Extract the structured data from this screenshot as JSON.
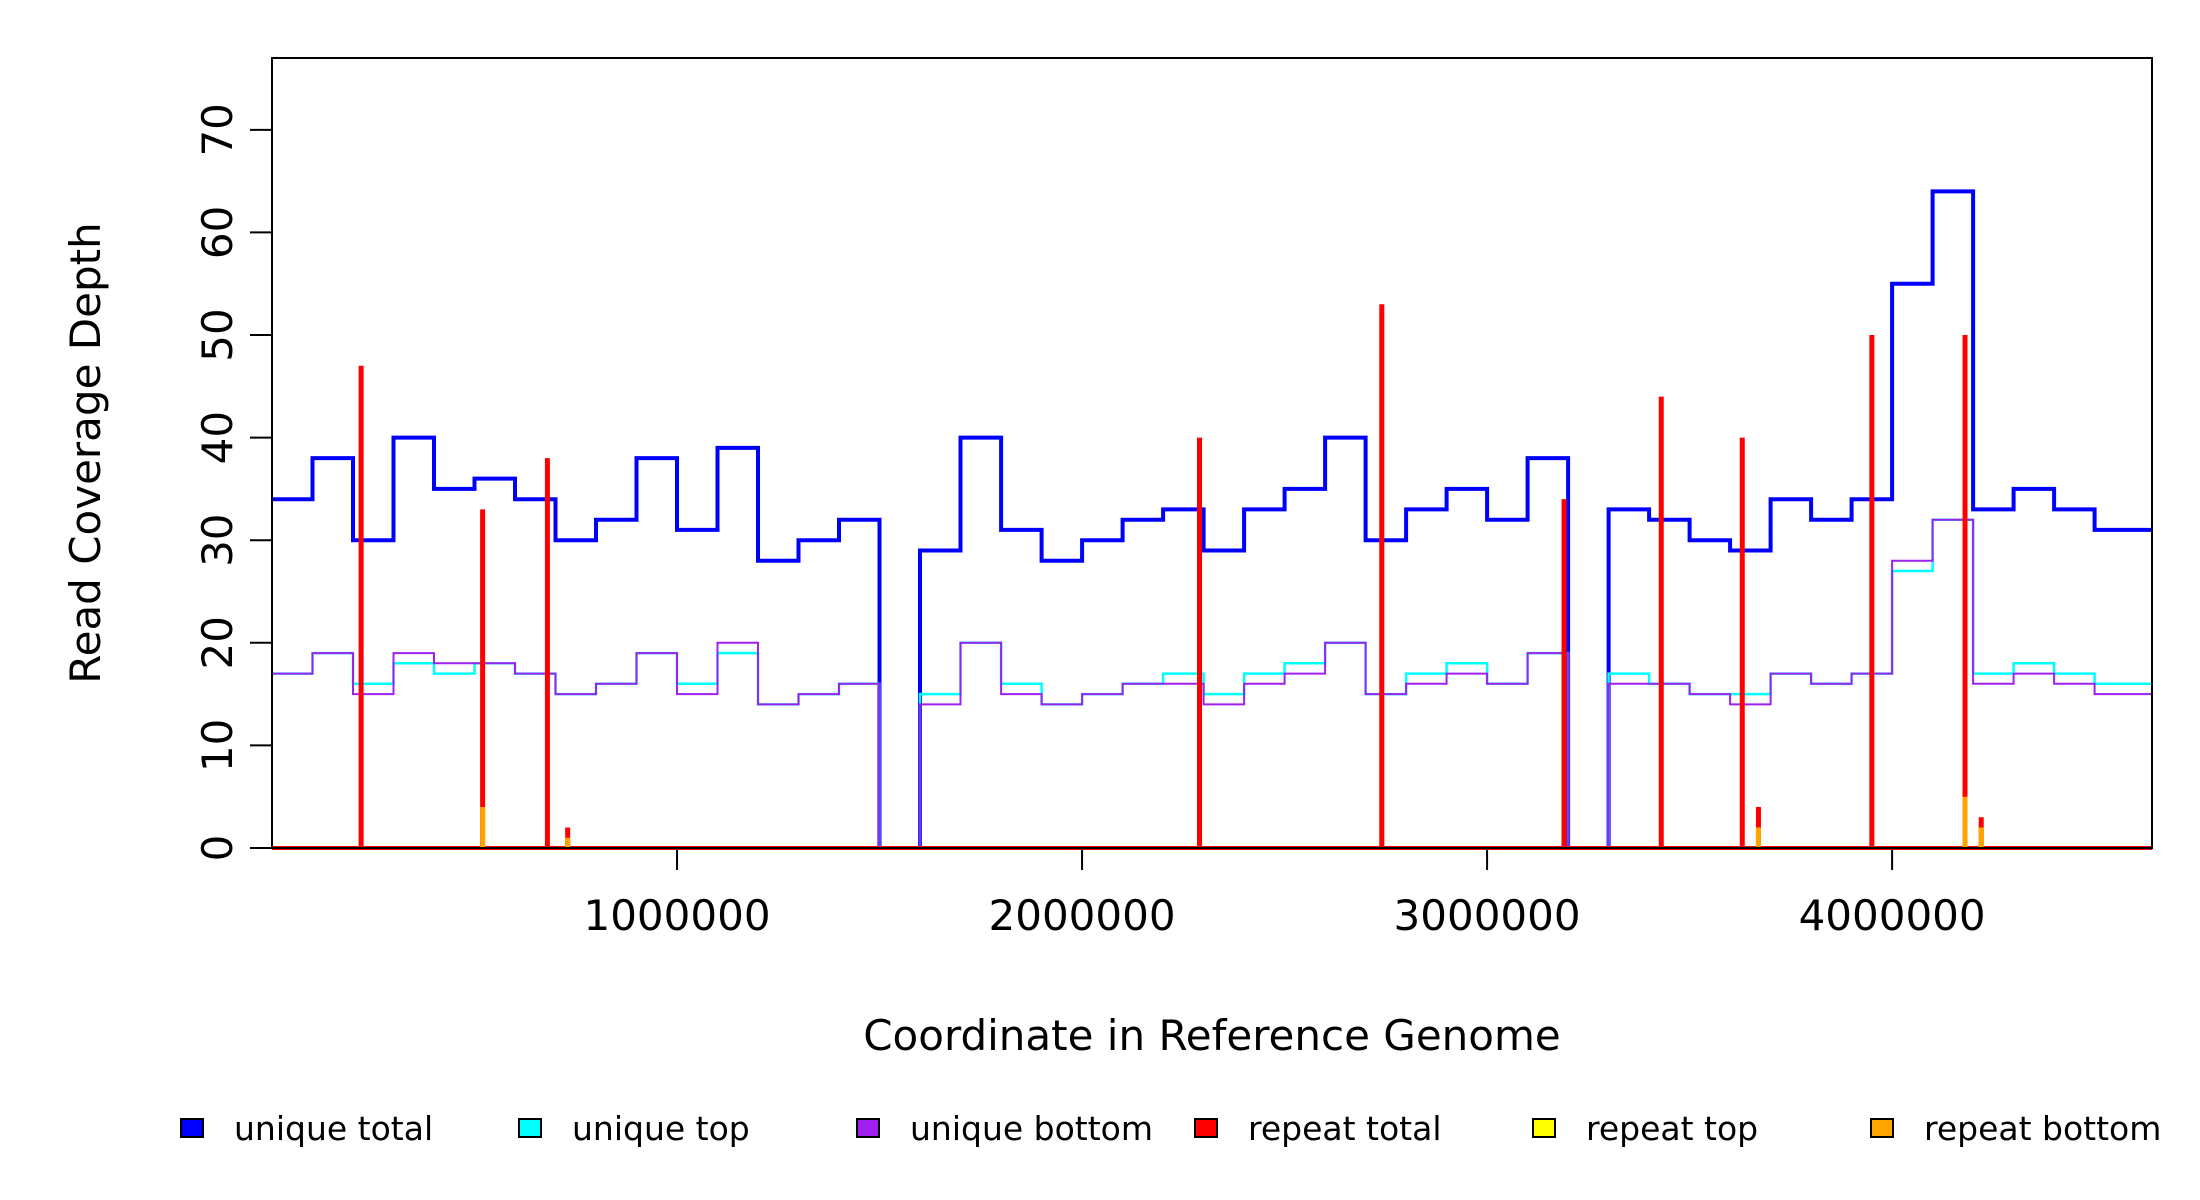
{
  "chart_data": {
    "type": "line",
    "xlabel": "Coordinate in Reference Genome",
    "ylabel": "Read Coverage Depth",
    "xlim": [
      0,
      4641652
    ],
    "ylim": [
      0,
      77
    ],
    "x_ticks": [
      1000000,
      2000000,
      3000000,
      4000000
    ],
    "x_tick_labels": [
      "1000000",
      "2000000",
      "3000000",
      "4000000"
    ],
    "y_ticks": [
      0,
      10,
      20,
      30,
      40,
      50,
      60,
      70
    ],
    "y_tick_labels": [
      "0",
      "10",
      "20",
      "30",
      "40",
      "50",
      "60",
      "70"
    ],
    "grid": false,
    "legend_position": "bottom",
    "x": [
      0,
      100000,
      200000,
      300000,
      400000,
      500000,
      600000,
      700000,
      800000,
      900000,
      1000000,
      1100000,
      1200000,
      1300000,
      1400000,
      1500000,
      1600000,
      1700000,
      1800000,
      1900000,
      2000000,
      2100000,
      2200000,
      2300000,
      2400000,
      2500000,
      2600000,
      2700000,
      2800000,
      2900000,
      3000000,
      3100000,
      3200000,
      3300000,
      3400000,
      3500000,
      3600000,
      3700000,
      3800000,
      3900000,
      4000000,
      4100000,
      4200000,
      4300000,
      4400000,
      4500000,
      4600000
    ],
    "series": [
      {
        "name": "unique total",
        "color": "#0000ff",
        "values": [
          34,
          38,
          30,
          40,
          35,
          36,
          34,
          30,
          32,
          38,
          31,
          39,
          28,
          30,
          32,
          0,
          29,
          40,
          31,
          28,
          30,
          32,
          33,
          29,
          33,
          35,
          40,
          30,
          33,
          35,
          32,
          38,
          0,
          33,
          32,
          30,
          29,
          34,
          32,
          34,
          55,
          64,
          33,
          35,
          33,
          31,
          31
        ]
      },
      {
        "name": "unique top",
        "color": "#00ffff",
        "values": [
          17,
          19,
          16,
          18,
          17,
          18,
          17,
          15,
          16,
          19,
          16,
          19,
          14,
          15,
          16,
          0,
          15,
          20,
          16,
          14,
          15,
          16,
          17,
          15,
          17,
          18,
          20,
          15,
          17,
          18,
          16,
          19,
          0,
          17,
          16,
          15,
          15,
          17,
          16,
          17,
          27,
          32,
          17,
          18,
          17,
          16,
          16
        ]
      },
      {
        "name": "unique bottom",
        "color": "#a020f0",
        "values": [
          17,
          19,
          15,
          19,
          18,
          18,
          17,
          15,
          16,
          19,
          15,
          20,
          14,
          15,
          16,
          0,
          14,
          20,
          15,
          14,
          15,
          16,
          16,
          14,
          16,
          17,
          20,
          15,
          16,
          17,
          16,
          19,
          0,
          16,
          16,
          15,
          14,
          17,
          16,
          17,
          28,
          32,
          16,
          17,
          16,
          15,
          15
        ]
      },
      {
        "name": "repeat total",
        "color": "#ff0000",
        "values": [
          0,
          0,
          0,
          0,
          0,
          0,
          0,
          0,
          0,
          0,
          0,
          0,
          0,
          0,
          0,
          0,
          0,
          0,
          0,
          0,
          0,
          0,
          0,
          0,
          0,
          0,
          0,
          0,
          0,
          0,
          0,
          0,
          0,
          0,
          0,
          0,
          0,
          0,
          0,
          0,
          0,
          0,
          0,
          0,
          0,
          0,
          0
        ]
      },
      {
        "name": "repeat top",
        "color": "#ffff00",
        "values": [
          0,
          0,
          0,
          0,
          0,
          0,
          0,
          0,
          0,
          0,
          0,
          0,
          0,
          0,
          0,
          0,
          0,
          0,
          0,
          0,
          0,
          0,
          0,
          0,
          0,
          0,
          0,
          0,
          0,
          0,
          0,
          0,
          0,
          0,
          0,
          0,
          0,
          0,
          0,
          0,
          0,
          0,
          0,
          0,
          0,
          0,
          0
        ]
      },
      {
        "name": "repeat bottom",
        "color": "#ffa500",
        "values": [
          0,
          0,
          0,
          0,
          0,
          0,
          0,
          0,
          0,
          0,
          0,
          0,
          0,
          0,
          0,
          0,
          0,
          0,
          0,
          0,
          0,
          0,
          0,
          0,
          0,
          0,
          0,
          0,
          0,
          0,
          0,
          0,
          0,
          0,
          0,
          0,
          0,
          0,
          0,
          0,
          0,
          0,
          0,
          0,
          0,
          0,
          0
        ]
      }
    ],
    "repeat_spikes": [
      {
        "x": 220000,
        "total": 47,
        "top": 0,
        "bottom": 0
      },
      {
        "x": 520000,
        "total": 33,
        "top": 0,
        "bottom": 4
      },
      {
        "x": 680000,
        "total": 38,
        "top": 0,
        "bottom": 0
      },
      {
        "x": 730000,
        "total": 2,
        "top": 0,
        "bottom": 1
      },
      {
        "x": 2290000,
        "total": 40,
        "top": 0,
        "bottom": 0
      },
      {
        "x": 2740000,
        "total": 53,
        "top": 0,
        "bottom": 0
      },
      {
        "x": 3190000,
        "total": 34,
        "top": 0,
        "bottom": 0
      },
      {
        "x": 3430000,
        "total": 44,
        "top": 0,
        "bottom": 0
      },
      {
        "x": 3630000,
        "total": 40,
        "top": 0,
        "bottom": 0
      },
      {
        "x": 3670000,
        "total": 4,
        "top": 0,
        "bottom": 2
      },
      {
        "x": 3950000,
        "total": 50,
        "top": 0,
        "bottom": 0
      },
      {
        "x": 4180000,
        "total": 50,
        "top": 0,
        "bottom": 5
      },
      {
        "x": 4220000,
        "total": 3,
        "top": 0,
        "bottom": 2
      }
    ]
  }
}
